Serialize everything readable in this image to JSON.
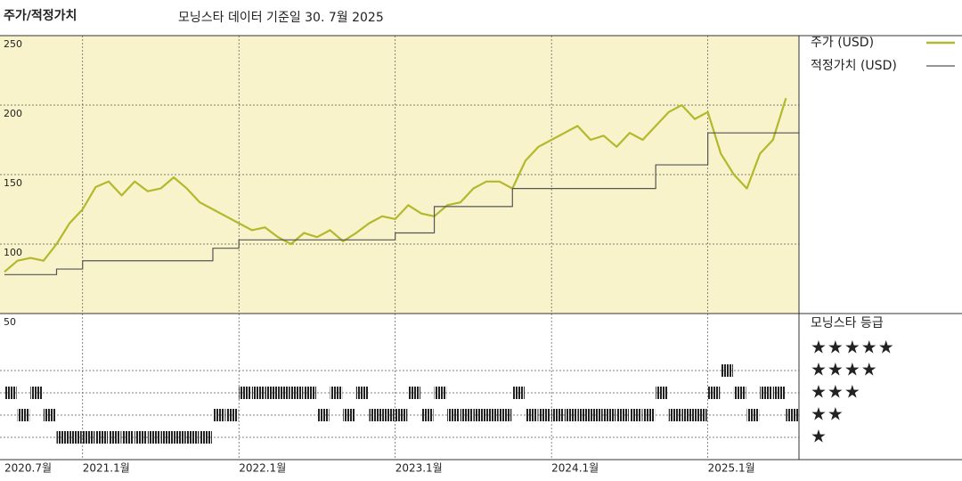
{
  "chart_data": {
    "type": "line",
    "title": "주가/적정가치",
    "subtitle": "모닝스타 데이터 기준일 30. 7월 2025",
    "x": [
      "2020-07",
      "2020-08",
      "2020-09",
      "2020-10",
      "2020-11",
      "2020-12",
      "2021-01",
      "2021-02",
      "2021-03",
      "2021-04",
      "2021-05",
      "2021-06",
      "2021-07",
      "2021-08",
      "2021-09",
      "2021-10",
      "2021-11",
      "2021-12",
      "2022-01",
      "2022-02",
      "2022-03",
      "2022-04",
      "2022-05",
      "2022-06",
      "2022-07",
      "2022-08",
      "2022-09",
      "2022-10",
      "2022-11",
      "2022-12",
      "2023-01",
      "2023-02",
      "2023-03",
      "2023-04",
      "2023-05",
      "2023-06",
      "2023-07",
      "2023-08",
      "2023-09",
      "2023-10",
      "2023-11",
      "2023-12",
      "2024-01",
      "2024-02",
      "2024-03",
      "2024-04",
      "2024-05",
      "2024-06",
      "2024-07",
      "2024-08",
      "2024-09",
      "2024-10",
      "2024-11",
      "2024-12",
      "2025-01",
      "2025-02",
      "2025-03",
      "2025-04",
      "2025-05",
      "2025-06",
      "2025-07"
    ],
    "xlim": [
      "2020-07",
      "2025-08"
    ],
    "xticks": [
      {
        "value": "2020-07",
        "label": "2020.7월"
      },
      {
        "value": "2021-01",
        "label": "2021.1월"
      },
      {
        "value": "2022-01",
        "label": "2022.1월"
      },
      {
        "value": "2023-01",
        "label": "2023.1월"
      },
      {
        "value": "2024-01",
        "label": "2024.1월"
      },
      {
        "value": "2025-01",
        "label": "2025.1월"
      }
    ],
    "ylim": [
      50,
      250
    ],
    "yticks": [
      50,
      100,
      150,
      200,
      250
    ],
    "grid": true,
    "series": [
      {
        "name": "주가 (USD)",
        "color": "#b3b82c",
        "values": [
          80,
          88,
          90,
          88,
          100,
          115,
          125,
          141,
          145,
          135,
          145,
          138,
          140,
          148,
          140,
          130,
          125,
          120,
          115,
          110,
          112,
          105,
          100,
          108,
          105,
          110,
          102,
          108,
          115,
          120,
          118,
          128,
          122,
          120,
          128,
          130,
          140,
          145,
          145,
          140,
          160,
          170,
          175,
          180,
          185,
          175,
          178,
          170,
          180,
          175,
          185,
          195,
          200,
          190,
          195,
          165,
          150,
          140,
          165,
          175,
          205
        ]
      },
      {
        "name": "적정가치 (USD)",
        "color": "#555555",
        "step": true,
        "values": [
          78,
          78,
          78,
          78,
          82,
          82,
          88,
          88,
          88,
          88,
          88,
          88,
          88,
          88,
          88,
          88,
          97,
          97,
          103,
          103,
          103,
          103,
          103,
          103,
          103,
          103,
          103,
          103,
          103,
          103,
          108,
          108,
          108,
          127,
          127,
          127,
          127,
          127,
          127,
          140,
          140,
          140,
          140,
          140,
          140,
          140,
          140,
          140,
          140,
          140,
          157,
          157,
          157,
          157,
          180,
          180,
          180,
          180,
          180,
          180,
          180
        ]
      }
    ],
    "rating": {
      "title": "모닝스타 등급",
      "levels": [
        {
          "value": 5,
          "label": "★★★★★"
        },
        {
          "value": 4,
          "label": "★★★★"
        },
        {
          "value": 3,
          "label": "★★★"
        },
        {
          "value": 2,
          "label": "★★"
        },
        {
          "value": 1,
          "label": "★"
        }
      ],
      "values": [
        3,
        2,
        3,
        2,
        1,
        1,
        1,
        1,
        1,
        1,
        1,
        1,
        1,
        1,
        1,
        1,
        2,
        2,
        3,
        3,
        3,
        3,
        3,
        3,
        2,
        3,
        2,
        3,
        2,
        2,
        2,
        3,
        2,
        3,
        2,
        2,
        2,
        2,
        2,
        3,
        2,
        2,
        2,
        2,
        2,
        2,
        2,
        2,
        2,
        2,
        3,
        2,
        2,
        2,
        3,
        4,
        3,
        2,
        3,
        3,
        2
      ]
    }
  }
}
